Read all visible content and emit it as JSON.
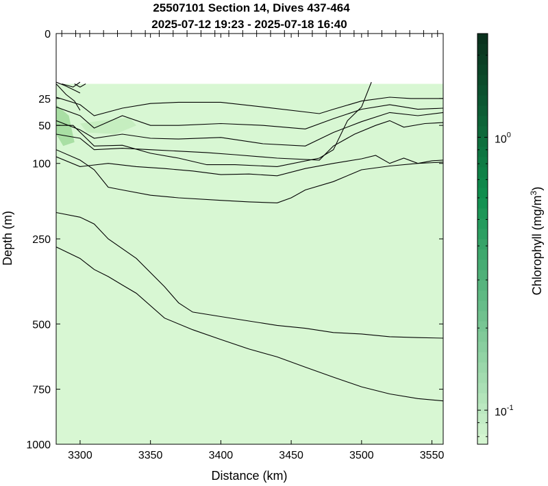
{
  "chart_data": {
    "type": "heatmap",
    "title_line1": "25507101 Section 14, Dives 437-464",
    "title_line2": "2025-07-12 19:23 - 2025-07-18 16:40",
    "xlabel": "Distance (km)",
    "ylabel": "Depth (m)",
    "xlim": [
      3283,
      3558
    ],
    "ylim_display": [
      0,
      1000
    ],
    "y_scale": "square-root",
    "x_ticks": [
      3300,
      3350,
      3400,
      3450,
      3500,
      3550
    ],
    "y_ticks": [
      0,
      25,
      50,
      100,
      250,
      500,
      750,
      1000
    ],
    "x_tick_labels": [
      "3300",
      "3350",
      "3400",
      "3450",
      "3500",
      "3550"
    ],
    "y_tick_labels": [
      "0",
      "25",
      "50",
      "100",
      "250",
      "500",
      "750",
      "1000"
    ],
    "no_data_above_depth": 15,
    "background_color": "#d8f7d3",
    "colorbar": {
      "label": "Chlorophyll (mg/m^3)",
      "scale": "log",
      "range": [
        0.075,
        2.4
      ],
      "ticks": [
        0.1,
        1
      ],
      "tick_labels": [
        "10^-1",
        "10^0"
      ],
      "color_low": "#d8f7d3",
      "color_mid": "#10904f",
      "color_high": "#0a2f1c"
    },
    "patches": [
      {
        "name": "nearshore-high",
        "x": [
          3283,
          3292,
          3296,
          3288,
          3283
        ],
        "depth": [
          30,
          40,
          70,
          75,
          60
        ],
        "color": "#a9dfa4"
      },
      {
        "name": "subsurface-max",
        "x": [
          3300,
          3315,
          3335,
          3340,
          3325,
          3305
        ],
        "depth": [
          48,
          45,
          42,
          50,
          60,
          58
        ],
        "color": "#c6eec0"
      }
    ],
    "series": [
      {
        "x": [
          3283,
          3290,
          3296,
          3300
        ],
        "y": [
          15,
          22,
          27,
          35
        ]
      },
      {
        "x": [
          3283,
          3289,
          3296,
          3300
        ],
        "y": [
          14,
          16,
          19,
          21
        ]
      },
      {
        "x": [
          3287,
          3295,
          3300
        ],
        "y": [
          15,
          17,
          14
        ]
      },
      {
        "x": [
          3296,
          3300,
          3304
        ],
        "y": [
          15,
          17,
          15
        ]
      },
      {
        "x": [
          3283,
          3300,
          3310,
          3330,
          3350,
          3370,
          3400,
          3430,
          3470,
          3480,
          3500,
          3520,
          3535,
          3550,
          3558
        ],
        "y": [
          24,
          30,
          40,
          33,
          29,
          28,
          28,
          32,
          38,
          34,
          27,
          24,
          25,
          25,
          25
        ]
      },
      {
        "x": [
          3283,
          3300,
          3310,
          3330,
          3350,
          3370,
          3400,
          3430,
          3460,
          3480,
          3500,
          3520,
          3540,
          3558
        ],
        "y": [
          32,
          40,
          53,
          40,
          50,
          50,
          48,
          50,
          54,
          43,
          34,
          30,
          34,
          33
        ]
      },
      {
        "x": [
          3283,
          3300,
          3310,
          3330,
          3350,
          3370,
          3400,
          3430,
          3460,
          3480,
          3500,
          3520,
          3540,
          3558
        ],
        "y": [
          45,
          55,
          65,
          60,
          65,
          66,
          64,
          72,
          75,
          58,
          46,
          37,
          40,
          37
        ]
      },
      {
        "x": [
          3283,
          3300,
          3310,
          3330,
          3350,
          3370,
          3390,
          3410,
          3440,
          3470,
          3480,
          3495,
          3510,
          3520,
          3530,
          3545,
          3558
        ],
        "y": [
          60,
          65,
          80,
          78,
          80,
          82,
          84,
          87,
          92,
          95,
          75,
          60,
          50,
          45,
          52,
          48,
          47
        ]
      },
      {
        "x": [
          3283,
          3295,
          3310,
          3330,
          3350,
          3370,
          3390,
          3410,
          3440,
          3470,
          3480,
          3490,
          3500,
          3507
        ],
        "y": [
          50,
          50,
          75,
          74,
          85,
          92,
          102,
          102,
          105,
          92,
          80,
          45,
          32,
          14
        ]
      },
      {
        "x": [
          3283,
          3300,
          3320,
          3340,
          3360,
          3380,
          3400,
          3420,
          3440,
          3460,
          3480,
          3500,
          3510,
          3520,
          3530,
          3540,
          3550,
          3558
        ],
        "y": [
          90,
          105,
          100,
          105,
          108,
          112,
          118,
          117,
          120,
          108,
          100,
          93,
          88,
          100,
          92,
          100,
          96,
          95
        ]
      },
      {
        "x": [
          3283,
          3300,
          3310,
          3320,
          3330,
          3350,
          3370,
          3400,
          3420,
          3440,
          3450,
          3460,
          3480,
          3500,
          3520,
          3540,
          3558
        ],
        "y": [
          80,
          95,
          110,
          140,
          145,
          155,
          160,
          165,
          168,
          170,
          160,
          145,
          130,
          110,
          104,
          100,
          98
        ]
      },
      {
        "x": [
          3283,
          3300,
          3310,
          3320,
          3340,
          3360,
          3370,
          3380,
          3400,
          3420,
          3440,
          3460,
          3480,
          3500,
          3520,
          3540,
          3558
        ],
        "y": [
          190,
          200,
          215,
          250,
          300,
          380,
          430,
          460,
          475,
          490,
          505,
          515,
          530,
          535,
          545,
          548,
          550
        ]
      },
      {
        "x": [
          3283,
          3300,
          3310,
          3320,
          3330,
          3340,
          3360,
          3380,
          3400,
          3420,
          3440,
          3460,
          3480,
          3500,
          3520,
          3540,
          3558
        ],
        "y": [
          270,
          300,
          330,
          350,
          375,
          400,
          480,
          520,
          555,
          590,
          620,
          660,
          700,
          740,
          770,
          790,
          800
        ]
      }
    ]
  }
}
